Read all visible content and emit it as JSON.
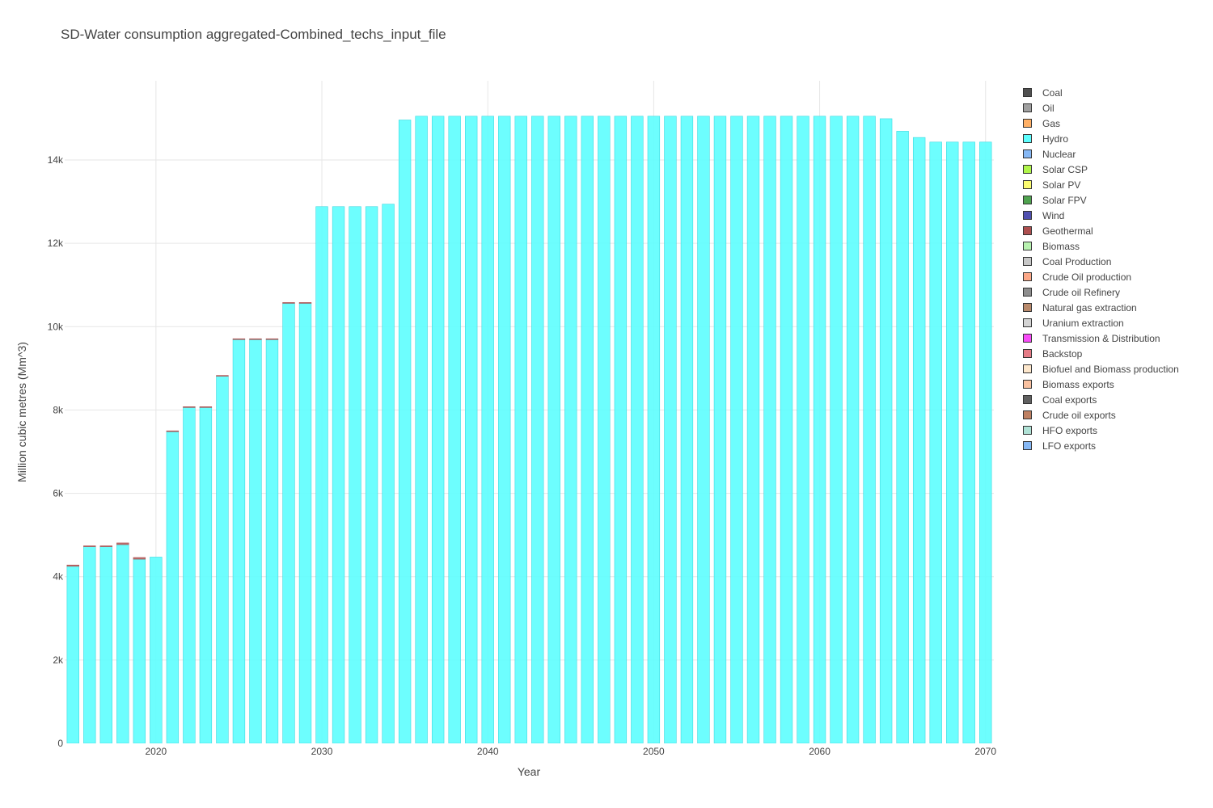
{
  "chart_data": {
    "type": "bar",
    "stacked": true,
    "title": "SD-Water consumption aggregated-Combined_techs_input_file",
    "xlabel": "Year",
    "ylabel": "Million cubic metres (Mm^3)",
    "xlim": [
      2015,
      2070
    ],
    "ylim": [
      0,
      15900
    ],
    "x_ticks": [
      2020,
      2030,
      2040,
      2050,
      2060,
      2070
    ],
    "y_ticks": [
      0,
      2000,
      4000,
      6000,
      8000,
      10000,
      12000,
      14000
    ],
    "y_tick_labels": [
      "0",
      "2k",
      "4k",
      "6k",
      "8k",
      "10k",
      "12k",
      "14k"
    ],
    "x_tick_labels": [
      "2020",
      "2030",
      "2040",
      "2050",
      "2060",
      "2070"
    ],
    "grid": true,
    "legend_position": "right",
    "years": [
      2015,
      2016,
      2017,
      2018,
      2019,
      2020,
      2021,
      2022,
      2023,
      2024,
      2025,
      2026,
      2027,
      2028,
      2029,
      2030,
      2031,
      2032,
      2033,
      2034,
      2035,
      2036,
      2037,
      2038,
      2039,
      2040,
      2041,
      2042,
      2043,
      2044,
      2045,
      2046,
      2047,
      2048,
      2049,
      2050,
      2051,
      2052,
      2053,
      2054,
      2055,
      2056,
      2057,
      2058,
      2059,
      2060,
      2061,
      2062,
      2063,
      2064,
      2065,
      2066,
      2067,
      2068,
      2069,
      2070
    ],
    "series": [
      {
        "name": "Coal",
        "color": "#505050",
        "values": []
      },
      {
        "name": "Oil",
        "color": "#a0a0a0",
        "values": []
      },
      {
        "name": "Gas",
        "color": "#ffb066",
        "values": []
      },
      {
        "name": "Hydro",
        "color": "#5dfefe",
        "values": [
          4250,
          4720,
          4720,
          4770,
          4420,
          4470,
          7480,
          8060,
          8060,
          8810,
          9690,
          9690,
          9690,
          10560,
          10560,
          12880,
          12880,
          12880,
          12880,
          12940,
          14960,
          15050,
          15050,
          15050,
          15050,
          15050,
          15050,
          15050,
          15050,
          15050,
          15050,
          15050,
          15050,
          15050,
          15050,
          15050,
          15050,
          15050,
          15050,
          15050,
          15050,
          15050,
          15050,
          15050,
          15050,
          15050,
          15050,
          15050,
          15050,
          14990,
          14690,
          14540,
          14430,
          14430,
          14430,
          14430
        ]
      },
      {
        "name": "Nuclear",
        "color": "#86b8f5",
        "values": []
      },
      {
        "name": "Solar CSP",
        "color": "#b0f54a",
        "values": []
      },
      {
        "name": "Solar PV",
        "color": "#fdfd70",
        "values": []
      },
      {
        "name": "Solar FPV",
        "color": "#4fa34f",
        "values": []
      },
      {
        "name": "Wind",
        "color": "#5050b0",
        "values": []
      },
      {
        "name": "Geothermal",
        "color": "#ad4f4f",
        "values": [
          30,
          20,
          20,
          40,
          40,
          0,
          20,
          20,
          20,
          20,
          20,
          20,
          20,
          20,
          20,
          0,
          0,
          0,
          0,
          0,
          0,
          0,
          0,
          0,
          0,
          0,
          0,
          0,
          0,
          0,
          0,
          0,
          0,
          0,
          0,
          0,
          0,
          0,
          0,
          0,
          0,
          0,
          0,
          0,
          0,
          0,
          0,
          0,
          0,
          0,
          0,
          0,
          0,
          0,
          0,
          0
        ]
      },
      {
        "name": "Biomass",
        "color": "#b8f2b0",
        "values": []
      },
      {
        "name": "Coal Production",
        "color": "#c8c8c8",
        "values": []
      },
      {
        "name": "Crude Oil production",
        "color": "#fca888",
        "values": []
      },
      {
        "name": "Crude oil Refinery",
        "color": "#8e8e8e",
        "values": []
      },
      {
        "name": "Natural gas extraction",
        "color": "#b98a6c",
        "values": []
      },
      {
        "name": "Uranium extraction",
        "color": "#d4d4d4",
        "values": []
      },
      {
        "name": "Transmission & Distribution",
        "color": "#f84cf8",
        "values": []
      },
      {
        "name": "Backstop",
        "color": "#e57b86",
        "values": []
      },
      {
        "name": "Biofuel and Biomass production",
        "color": "#fde7cc",
        "values": []
      },
      {
        "name": "Biomass exports",
        "color": "#f9c1a0",
        "values": []
      },
      {
        "name": "Coal exports",
        "color": "#606060",
        "values": []
      },
      {
        "name": "Crude oil exports",
        "color": "#bf8062",
        "values": []
      },
      {
        "name": "HFO exports",
        "color": "#b0e2d6",
        "values": []
      },
      {
        "name": "LFO exports",
        "color": "#86b8f5",
        "values": []
      }
    ]
  }
}
